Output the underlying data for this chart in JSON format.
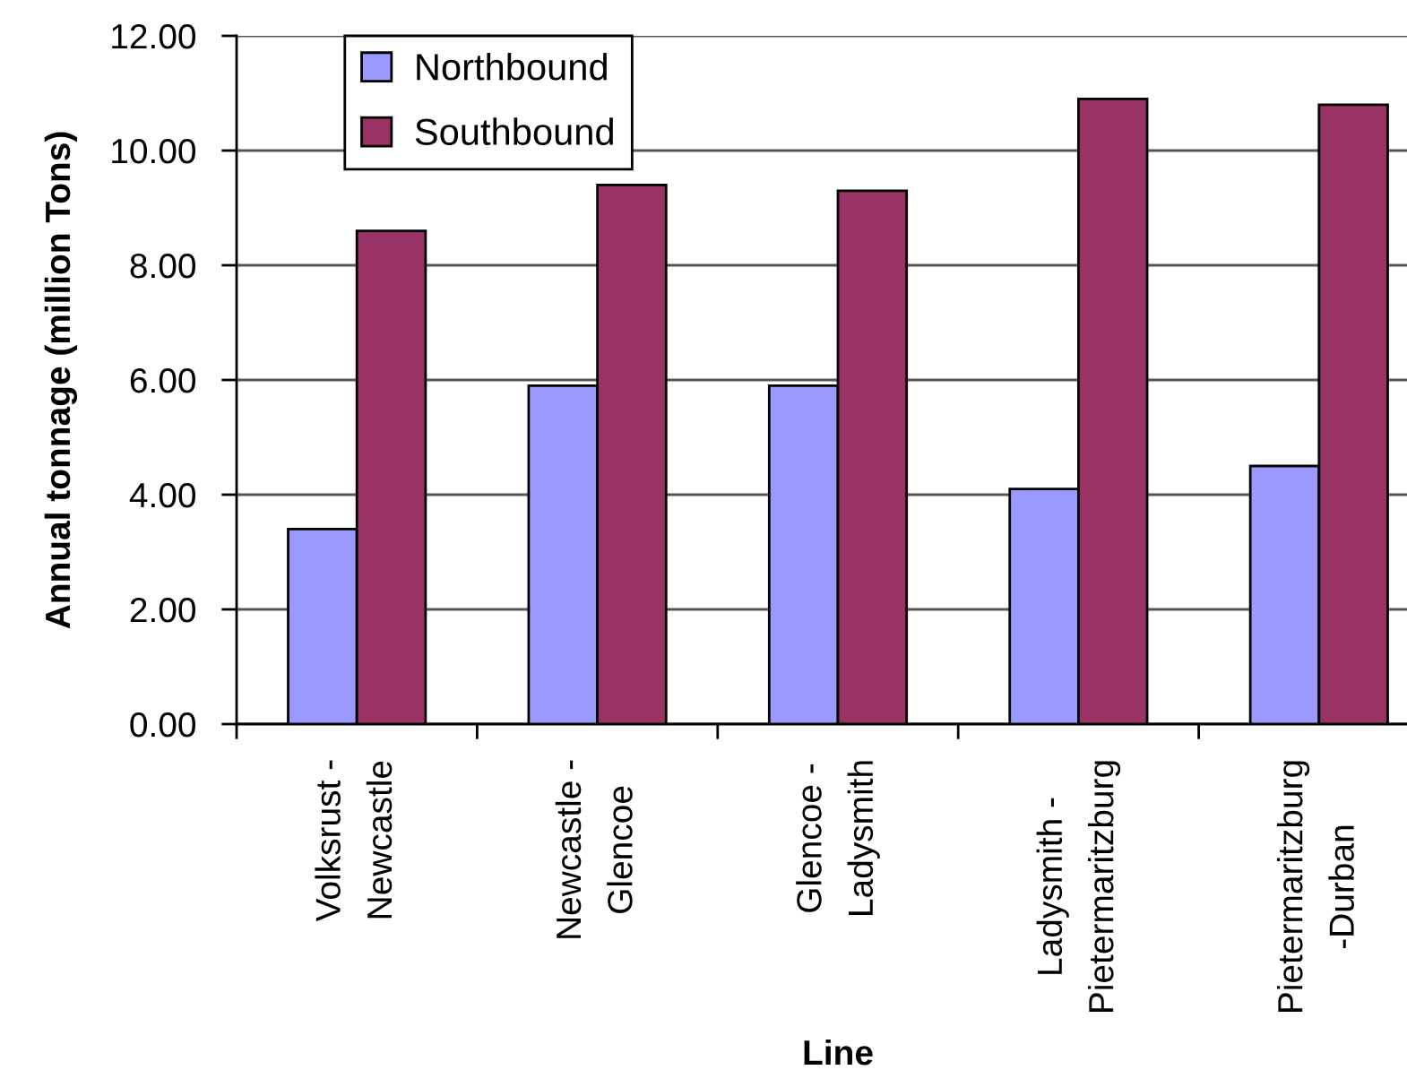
{
  "chart_data": {
    "type": "bar",
    "xlabel": "Line",
    "ylabel": "Annual tonnage (million Tons)",
    "categories": [
      "Volksrust -\nNewcastle",
      "Newcastle -\nGlencoe",
      "Glencoe -\nLadysmith",
      "Ladysmith -\nPietermaritzburg",
      "Pietermaritzburg\n-Durban"
    ],
    "series": [
      {
        "name": "Northbound",
        "color": "#9999ff",
        "values": [
          3.4,
          5.9,
          5.9,
          4.1,
          4.5
        ]
      },
      {
        "name": "Southbound",
        "color": "#993366",
        "values": [
          8.6,
          9.4,
          9.3,
          10.9,
          10.8
        ]
      }
    ],
    "ylim": [
      0,
      12
    ],
    "yticks": [
      {
        "value": 0,
        "label": "0.00"
      },
      {
        "value": 2,
        "label": "2.00"
      },
      {
        "value": 4,
        "label": "4.00"
      },
      {
        "value": 6,
        "label": "6.00"
      },
      {
        "value": 8,
        "label": "8.00"
      },
      {
        "value": 10,
        "label": "10.00"
      },
      {
        "value": 12,
        "label": "12.00"
      }
    ],
    "grid": "y",
    "legend": "top left"
  }
}
